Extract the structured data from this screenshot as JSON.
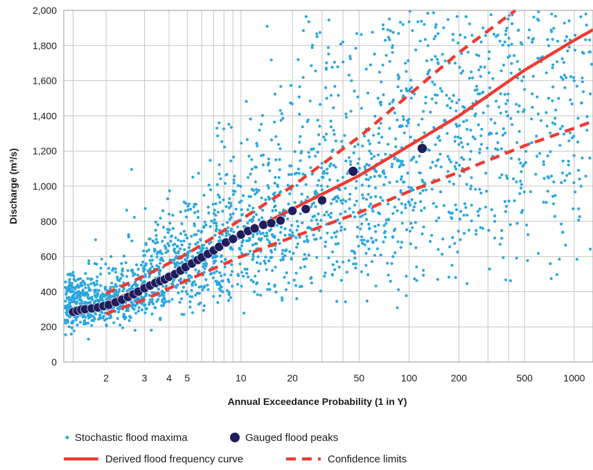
{
  "chart_data": {
    "type": "scatter",
    "x_scale": "gumbel",
    "xlabel": "Annual Exceedance Probability (1 in Y)",
    "ylabel": "Discharge (m³/s)",
    "ylim": [
      0,
      2000
    ],
    "xlim": [
      1.4,
      1300
    ],
    "x_ticks": [
      {
        "value": 2,
        "label": "2"
      },
      {
        "value": 3,
        "label": "3"
      },
      {
        "value": 4,
        "label": "4"
      },
      {
        "value": 5,
        "label": "5"
      },
      {
        "value": 10,
        "label": "10"
      },
      {
        "value": 20,
        "label": "20"
      },
      {
        "value": 50,
        "label": "50"
      },
      {
        "value": 100,
        "label": "100"
      },
      {
        "value": 200,
        "label": "200"
      },
      {
        "value": 500,
        "label": "500"
      },
      {
        "value": 1000,
        "label": "1000"
      }
    ],
    "x_gridlines": [
      1.5,
      2,
      3,
      4,
      5,
      6,
      7,
      8,
      9,
      10,
      20,
      30,
      40,
      50,
      100,
      200,
      300,
      400,
      500,
      1000
    ],
    "y_ticks": [
      {
        "value": 0,
        "label": "0"
      },
      {
        "value": 200,
        "label": "200"
      },
      {
        "value": 400,
        "label": "400"
      },
      {
        "value": 600,
        "label": "600"
      },
      {
        "value": 800,
        "label": "800"
      },
      {
        "value": 1000,
        "label": "1,000"
      },
      {
        "value": 1200,
        "label": "1,200"
      },
      {
        "value": 1400,
        "label": "1,400"
      },
      {
        "value": 1600,
        "label": "1,600"
      },
      {
        "value": 1800,
        "label": "1,800"
      },
      {
        "value": 2000,
        "label": "2,000"
      }
    ],
    "grid": true,
    "legend_position": "bottom",
    "series": [
      {
        "name": "Stochastic flood maxima",
        "kind": "scatter",
        "color": "#2aa7df",
        "x": [
          1.5,
          1.55,
          1.6,
          1.7,
          1.8,
          1.9,
          2.1,
          2.3,
          2.5,
          2.7,
          3.2,
          3.6,
          4.2,
          4.8,
          5.5,
          6.2,
          7.2,
          8.5,
          11,
          13,
          16,
          19,
          22,
          26,
          32,
          38,
          45,
          55,
          65,
          80,
          95,
          110,
          130,
          160,
          190,
          230,
          280,
          330,
          400,
          480,
          600,
          750,
          900,
          1100,
          1.6,
          1.8,
          2.2,
          2.6,
          3.0,
          3.5,
          4.0,
          4.5,
          5.2,
          6.0,
          7.0,
          8.0,
          9.5,
          12,
          15,
          18,
          24,
          30,
          40,
          60,
          85,
          120,
          170,
          250,
          350,
          500,
          700,
          1000,
          2.6,
          7.5,
          25,
          28,
          150,
          320,
          420
        ],
        "y": [
          510,
          210,
          450,
          130,
          560,
          250,
          600,
          210,
          520,
          180,
          700,
          250,
          760,
          270,
          850,
          320,
          900,
          350,
          1050,
          380,
          1150,
          450,
          1250,
          450,
          1500,
          540,
          1600,
          550,
          1500,
          600,
          1700,
          650,
          1800,
          700,
          1700,
          750,
          1900,
          800,
          1800,
          850,
          1950,
          900,
          1850,
          1000,
          320,
          330,
          380,
          420,
          400,
          480,
          480,
          520,
          560,
          600,
          620,
          680,
          720,
          780,
          820,
          860,
          920,
          980,
          1050,
          1100,
          1150,
          1250,
          1300,
          1400,
          1450,
          1550,
          1500,
          1600,
          1095,
          1360,
          1935,
          1850,
          640,
          1170,
          1350
        ]
      },
      {
        "name": "Gauged flood peaks",
        "kind": "scatter",
        "color": "#1f1d5c",
        "x": [
          1.5,
          1.55,
          1.6,
          1.65,
          1.75,
          1.85,
          1.95,
          2.05,
          2.2,
          2.35,
          2.5,
          2.65,
          2.8,
          3.0,
          3.2,
          3.4,
          3.6,
          3.8,
          4.0,
          4.3,
          4.6,
          4.9,
          5.3,
          5.7,
          6.0,
          6.5,
          7.0,
          7.5,
          8.2,
          9.0,
          10,
          11,
          12,
          13.5,
          15,
          17,
          20,
          24,
          30,
          46,
          120
        ],
        "y": [
          285,
          292,
          298,
          300,
          305,
          310,
          318,
          325,
          340,
          355,
          370,
          385,
          400,
          420,
          435,
          450,
          460,
          470,
          485,
          500,
          520,
          540,
          560,
          580,
          595,
          615,
          635,
          655,
          680,
          700,
          725,
          745,
          760,
          780,
          790,
          805,
          860,
          870,
          920,
          1085,
          1215
        ]
      },
      {
        "name": "Derived flood frequency curve",
        "kind": "line",
        "color": "#ee3b33",
        "x": [
          2,
          3,
          5,
          10,
          20,
          50,
          100,
          200,
          500,
          1000,
          1300
        ],
        "y": [
          335,
          430,
          550,
          720,
          870,
          1060,
          1230,
          1400,
          1660,
          1830,
          1890
        ]
      },
      {
        "name": "Confidence limits",
        "kind": "dashed-line",
        "color": "#ee3b33",
        "x": [
          2,
          3,
          5,
          10,
          20,
          50,
          100,
          200,
          440
        ],
        "y": [
          390,
          490,
          615,
          810,
          1000,
          1280,
          1520,
          1760,
          2000
        ]
      },
      {
        "name": "Confidence limits",
        "kind": "dashed-line",
        "color": "#ee3b33",
        "x": [
          2,
          3,
          5,
          10,
          20,
          50,
          100,
          200,
          500,
          1000,
          1300
        ],
        "y": [
          275,
          355,
          465,
          600,
          710,
          850,
          970,
          1080,
          1230,
          1330,
          1370
        ]
      }
    ]
  },
  "legend": {
    "rows": [
      [
        {
          "label": "Stochastic flood maxima",
          "marker": "small-dot",
          "color": "#2aa7df"
        },
        {
          "label": "Gauged flood peaks",
          "marker": "big-dot",
          "color": "#1f1d5c"
        }
      ],
      [
        {
          "label": "Derived flood frequency curve",
          "marker": "solid-line",
          "color": "#ee3b33"
        },
        {
          "label": "Confidence limits",
          "marker": "dashed-line",
          "color": "#ee3b33"
        }
      ]
    ]
  },
  "style": {
    "grid_color": "#c4c4c4",
    "axis_color": "#9a9a9a"
  }
}
